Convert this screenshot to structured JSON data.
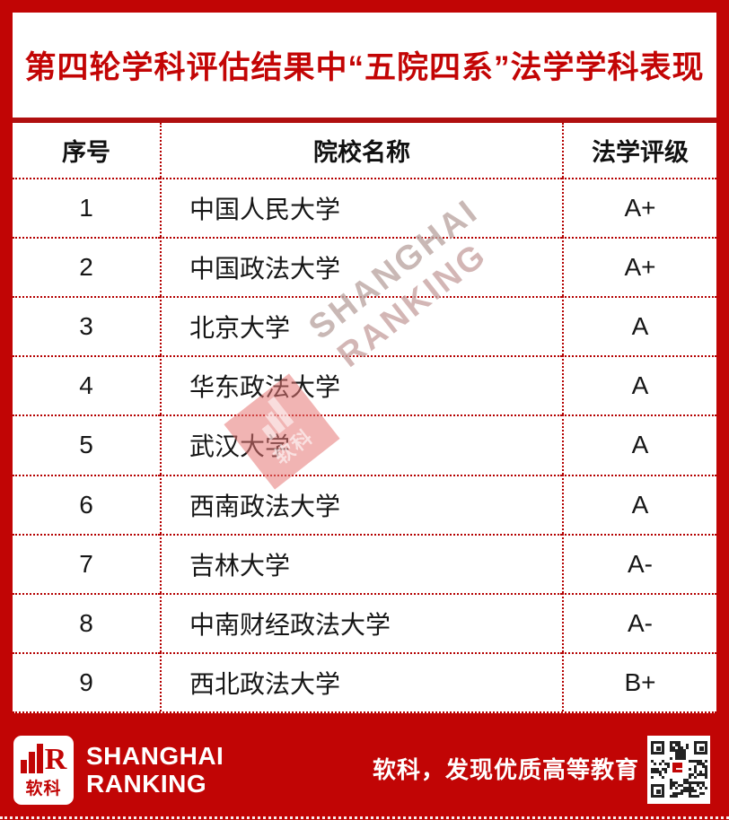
{
  "title": "第四轮学科评估结果中“五院四系”法学学科表现",
  "chart_data": {
    "type": "table",
    "title": "第四轮学科评估结果中“五院四系”法学学科表现",
    "columns": [
      "序号",
      "院校名称",
      "法学评级"
    ],
    "rows": [
      [
        "1",
        "中国人民大学",
        "A+"
      ],
      [
        "2",
        "中国政法大学",
        "A+"
      ],
      [
        "3",
        "北京大学",
        "A"
      ],
      [
        "4",
        "华东政法大学",
        "A"
      ],
      [
        "5",
        "武汉大学",
        "A"
      ],
      [
        "6",
        "西南政法大学",
        "A"
      ],
      [
        "7",
        "吉林大学",
        "A-"
      ],
      [
        "8",
        "中南财经政法大学",
        "A-"
      ],
      [
        "9",
        "西北政法大学",
        "B+"
      ]
    ]
  },
  "table": {
    "headers": {
      "rank": "序号",
      "school": "院校名称",
      "grade": "法学评级"
    },
    "rows": [
      {
        "rank": "1",
        "school": "中国人民大学",
        "grade": "A+"
      },
      {
        "rank": "2",
        "school": "中国政法大学",
        "grade": "A+"
      },
      {
        "rank": "3",
        "school": "北京大学",
        "grade": "A"
      },
      {
        "rank": "4",
        "school": "华东政法大学",
        "grade": "A"
      },
      {
        "rank": "5",
        "school": "武汉大学",
        "grade": "A"
      },
      {
        "rank": "6",
        "school": "西南政法大学",
        "grade": "A"
      },
      {
        "rank": "7",
        "school": "吉林大学",
        "grade": "A-"
      },
      {
        "rank": "8",
        "school": "中南财经政法大学",
        "grade": "A-"
      },
      {
        "rank": "9",
        "school": "西北政法大学",
        "grade": "B+"
      }
    ]
  },
  "watermark": {
    "line1": "SHANGHAI",
    "line2": "RANKING",
    "logo_text": "软科"
  },
  "footer": {
    "brand_line1": "SHANGHAI",
    "brand_line2": "RANKING",
    "logo_letter": "R",
    "logo_text": "软科",
    "slogan": "软科，发现优质高等教育"
  },
  "colors": {
    "brand_red": "#C10505",
    "title_red": "#C30505",
    "divider_red": "#B01010",
    "dotted_red": "#B40000",
    "text_black": "#161616"
  }
}
